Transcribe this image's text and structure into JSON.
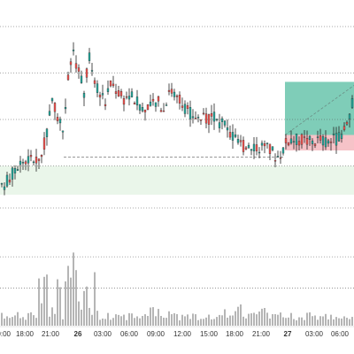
{
  "chart_data": {
    "type": "candlestick",
    "x_ticks": [
      {
        "label": "00:00",
        "bold": false
      },
      {
        "label": "18:00",
        "bold": false
      },
      {
        "label": "21:00",
        "bold": false
      },
      {
        "label": "26",
        "bold": true
      },
      {
        "label": "03:00",
        "bold": false
      },
      {
        "label": "06:00",
        "bold": false
      },
      {
        "label": "09:00",
        "bold": false
      },
      {
        "label": "12:00",
        "bold": false
      },
      {
        "label": "15:00",
        "bold": false
      },
      {
        "label": "18:00",
        "bold": false
      },
      {
        "label": "21:00",
        "bold": false
      },
      {
        "label": "27",
        "bold": true
      },
      {
        "label": "03:00",
        "bold": false
      },
      {
        "label": "06:00",
        "bold": false
      }
    ],
    "ylim": [
      0,
      100
    ],
    "price_levels": [
      100,
      79,
      58,
      37,
      18
    ],
    "volume_levels": [
      66,
      36
    ],
    "swing_low_level": 41,
    "zone_band": [
      24,
      37
    ],
    "position_tool": {
      "entry": 51,
      "take_profit": 75,
      "stop_loss": 44
    },
    "grid": true,
    "colors": {
      "up": "#26a69a",
      "down": "#ef5350",
      "wick": "#222222",
      "volume": "#b5b5b5",
      "profit_zone": "#7fcdb8",
      "loss_zone": "#f6c3c8",
      "band": "#eaf6ea",
      "grid": "#555555"
    }
  }
}
